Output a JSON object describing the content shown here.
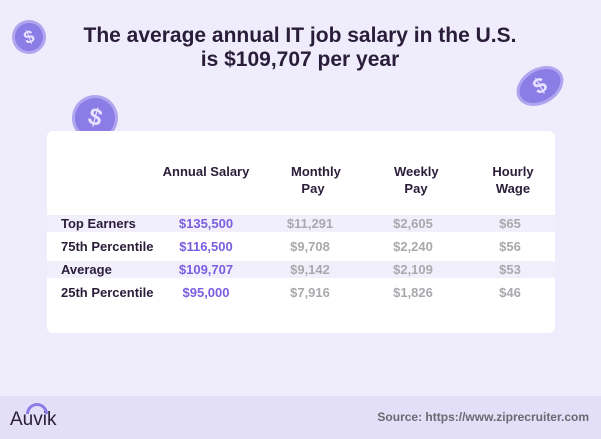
{
  "title": "The average annual IT job salary in the U.S. is $109,707 per year",
  "coin_symbol": "$",
  "chart_data": {
    "type": "table",
    "columns": [
      "",
      "Annual Salary",
      "Monthly Pay",
      "Weekly Pay",
      "Hourly Wage"
    ],
    "rows": [
      {
        "label": "Top Earners",
        "values": [
          "$135,500",
          "$11,291",
          "$2,605",
          "$65"
        ]
      },
      {
        "label": "75th Percentile",
        "values": [
          "$116,500",
          "$9,708",
          "$2,240",
          "$56"
        ]
      },
      {
        "label": "Average",
        "values": [
          "$109,707",
          "$9,142",
          "$2,109",
          "$53"
        ]
      },
      {
        "label": "25th Percentile",
        "values": [
          "$95,000",
          "$7,916",
          "$1,826",
          "$46"
        ]
      }
    ]
  },
  "footer": {
    "logo": "Auvik",
    "source": "Source: https://www.ziprecruiter.com"
  },
  "colors": {
    "accent": "#7a5ee0",
    "coin": "#8b7ce6",
    "background": "#efedfb"
  }
}
